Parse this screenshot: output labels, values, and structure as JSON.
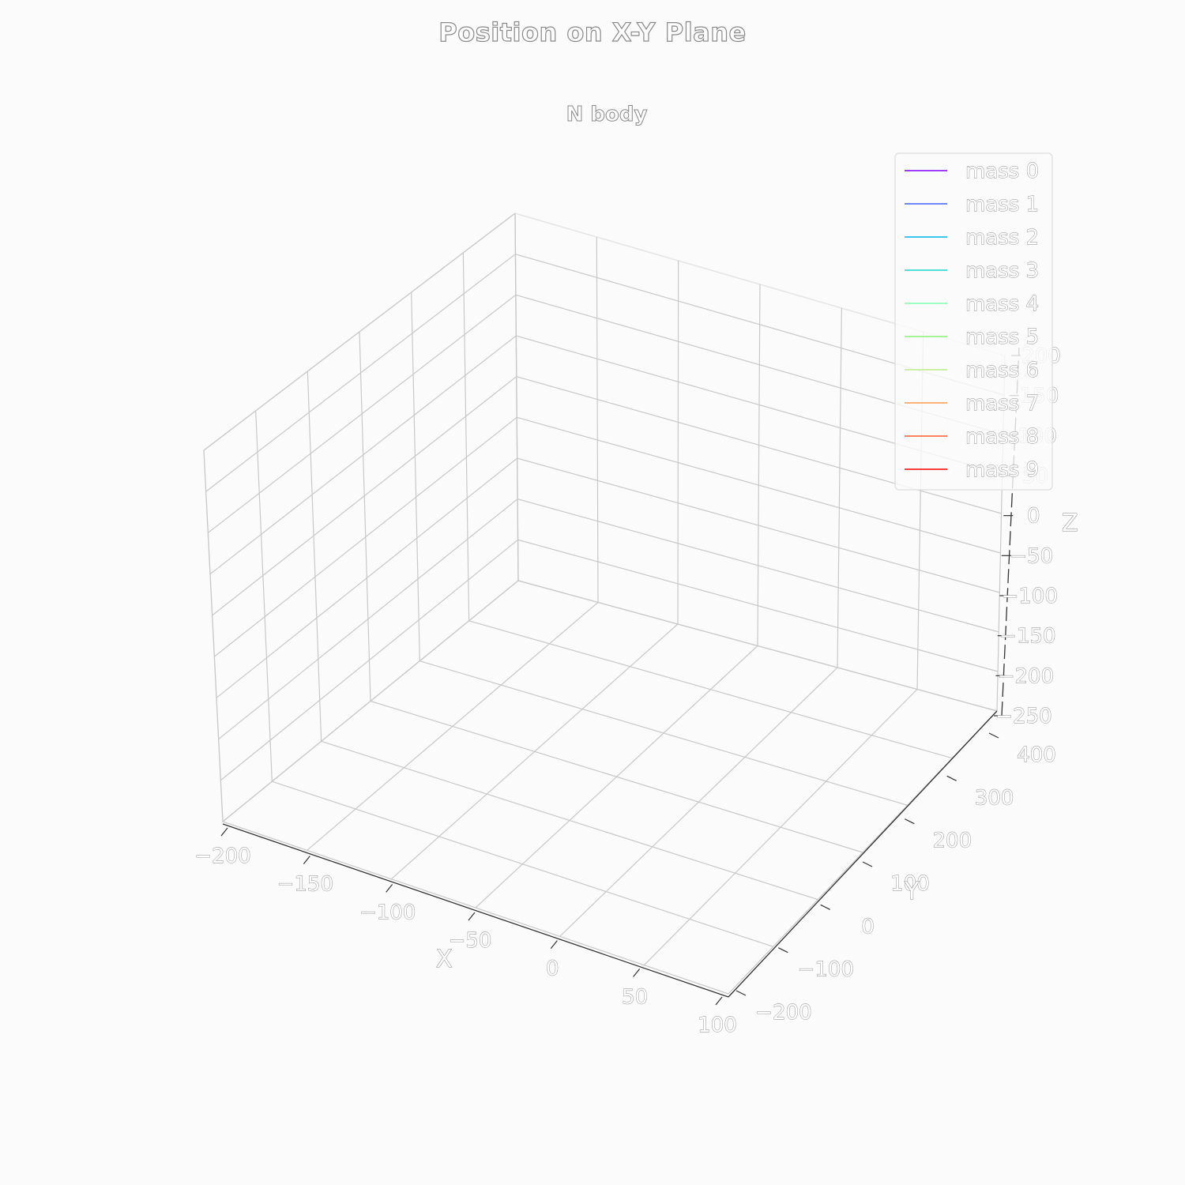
{
  "suptitle": "Position on X-Y Plane",
  "chart_data": {
    "type": "line",
    "projection": "3d",
    "title": "N body",
    "xlabel": "X",
    "ylabel": "Y",
    "zlabel": "Z",
    "xlim": [
      -200,
      100
    ],
    "ylim": [
      -200,
      400
    ],
    "zlim": [
      -250,
      200
    ],
    "xticks": [
      "−200",
      "−150",
      "−100",
      "−50",
      "0",
      "50",
      "100"
    ],
    "yticks": [
      "−200",
      "−100",
      "0",
      "100",
      "200",
      "300",
      "400"
    ],
    "zticks": [
      "−250",
      "−200",
      "−150",
      "−100",
      "−50",
      "0",
      "50",
      "100",
      "150",
      "200"
    ],
    "grid": true,
    "legend_position": "top-right",
    "series": [
      {
        "name": "mass 0",
        "color": "#8000ff"
      },
      {
        "name": "mass 1",
        "color": "#4062fa"
      },
      {
        "name": "mass 2",
        "color": "#00b5eb"
      },
      {
        "name": "mass 3",
        "color": "#1bd5d0"
      },
      {
        "name": "mass 4",
        "color": "#80ffb4"
      },
      {
        "name": "mass 5",
        "color": "#8ef27a"
      },
      {
        "name": "mass 6",
        "color": "#c0eb8d"
      },
      {
        "name": "mass 7",
        "color": "#ff9a50"
      },
      {
        "name": "mass 8",
        "color": "#ff5a2e"
      },
      {
        "name": "mass 9",
        "color": "#ff0000"
      }
    ]
  }
}
